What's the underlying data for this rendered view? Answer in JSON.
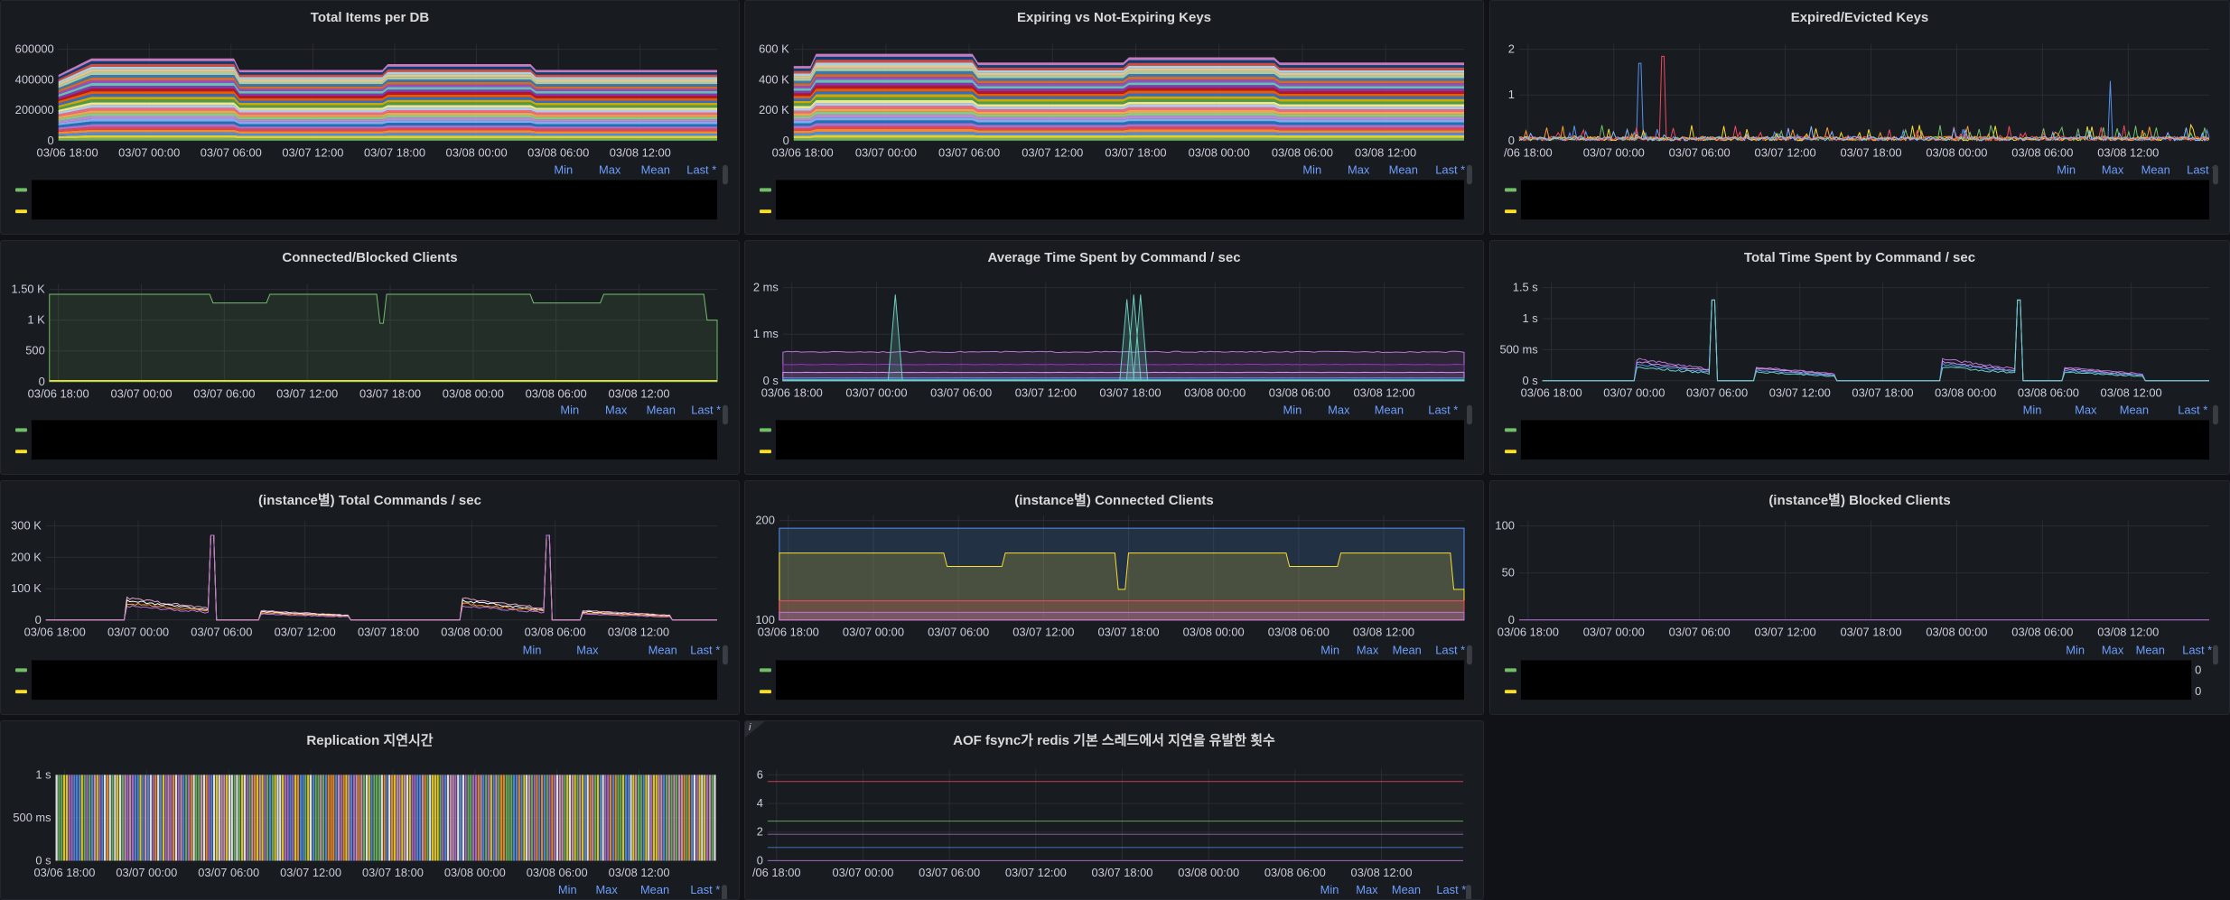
{
  "time_ticks": [
    "03/06 18:00",
    "03/07 00:00",
    "03/07 06:00",
    "03/07 12:00",
    "03/07 18:00",
    "03/08 00:00",
    "03/08 06:00",
    "03/08 12:00"
  ],
  "legend_cols": [
    "Min",
    "Max",
    "Mean",
    "Last *"
  ],
  "colors": {
    "green": "#73bf69",
    "yellow": "#fade2a",
    "blue": "#5794f2",
    "red": "#f2495c",
    "purple": "#b877d9",
    "orange": "#ff9830",
    "teal": "#6ccfc1",
    "pink": "#e0a2c8"
  },
  "panels": [
    {
      "id": "total-items-per-db",
      "title": "Total Items per DB",
      "y_ticks": [
        "600000",
        "400000",
        "200000",
        "0"
      ],
      "x_first": "03/06 18:00"
    },
    {
      "id": "expiring-vs-not-expiring-keys",
      "title": "Expiring vs Not-Expiring Keys",
      "y_ticks": [
        "600 K",
        "400 K",
        "200 K",
        "0"
      ],
      "x_first": "03/06 18:00"
    },
    {
      "id": "expired-evicted-keys",
      "title": "Expired/Evicted Keys",
      "y_ticks": [
        "2",
        "1",
        "0"
      ],
      "x_first": "/06 18:00"
    },
    {
      "id": "connected-blocked-clients",
      "title": "Connected/Blocked Clients",
      "y_ticks": [
        "1.50 K",
        "1 K",
        "500",
        "0"
      ],
      "x_first": "03/06 18:00"
    },
    {
      "id": "avg-time-by-command",
      "title": "Average Time Spent by Command / sec",
      "y_ticks": [
        "2 ms",
        "1 ms",
        "0 s"
      ],
      "x_first": "03/06 18:00"
    },
    {
      "id": "total-time-by-command",
      "title": "Total Time Spent by Command / sec",
      "y_ticks": [
        "1.5 s",
        "1 s",
        "500 ms",
        "0 s"
      ],
      "x_first": "03/06 18:00"
    },
    {
      "id": "instance-total-commands",
      "title": "(instance별) Total Commands / sec",
      "y_ticks": [
        "300 K",
        "200 K",
        "100 K",
        "0"
      ],
      "x_first": "03/06 18:00"
    },
    {
      "id": "instance-connected-clients",
      "title": "(instance별) Connected Clients",
      "y_ticks": [
        "200",
        "100"
      ],
      "x_first": "03/06 18:00"
    },
    {
      "id": "instance-blocked-clients",
      "title": "(instance별) Blocked Clients",
      "y_ticks": [
        "100",
        "50",
        "0"
      ],
      "x_first": "03/06 18:00",
      "legend_edge": [
        "0",
        "0"
      ]
    },
    {
      "id": "replication-latency",
      "title": "Replication 지연시간",
      "y_ticks": [
        "1 s",
        "500 ms",
        "0 s"
      ],
      "x_first": "03/06 18:00"
    },
    {
      "id": "aof-fsync-delay",
      "title": "AOF fsync가 redis 기본 스레드에서 지연을 유발한 횟수",
      "y_ticks": [
        "6",
        "4",
        "2",
        "0"
      ],
      "x_first": "/06 18:00",
      "info": "i"
    }
  ]
}
